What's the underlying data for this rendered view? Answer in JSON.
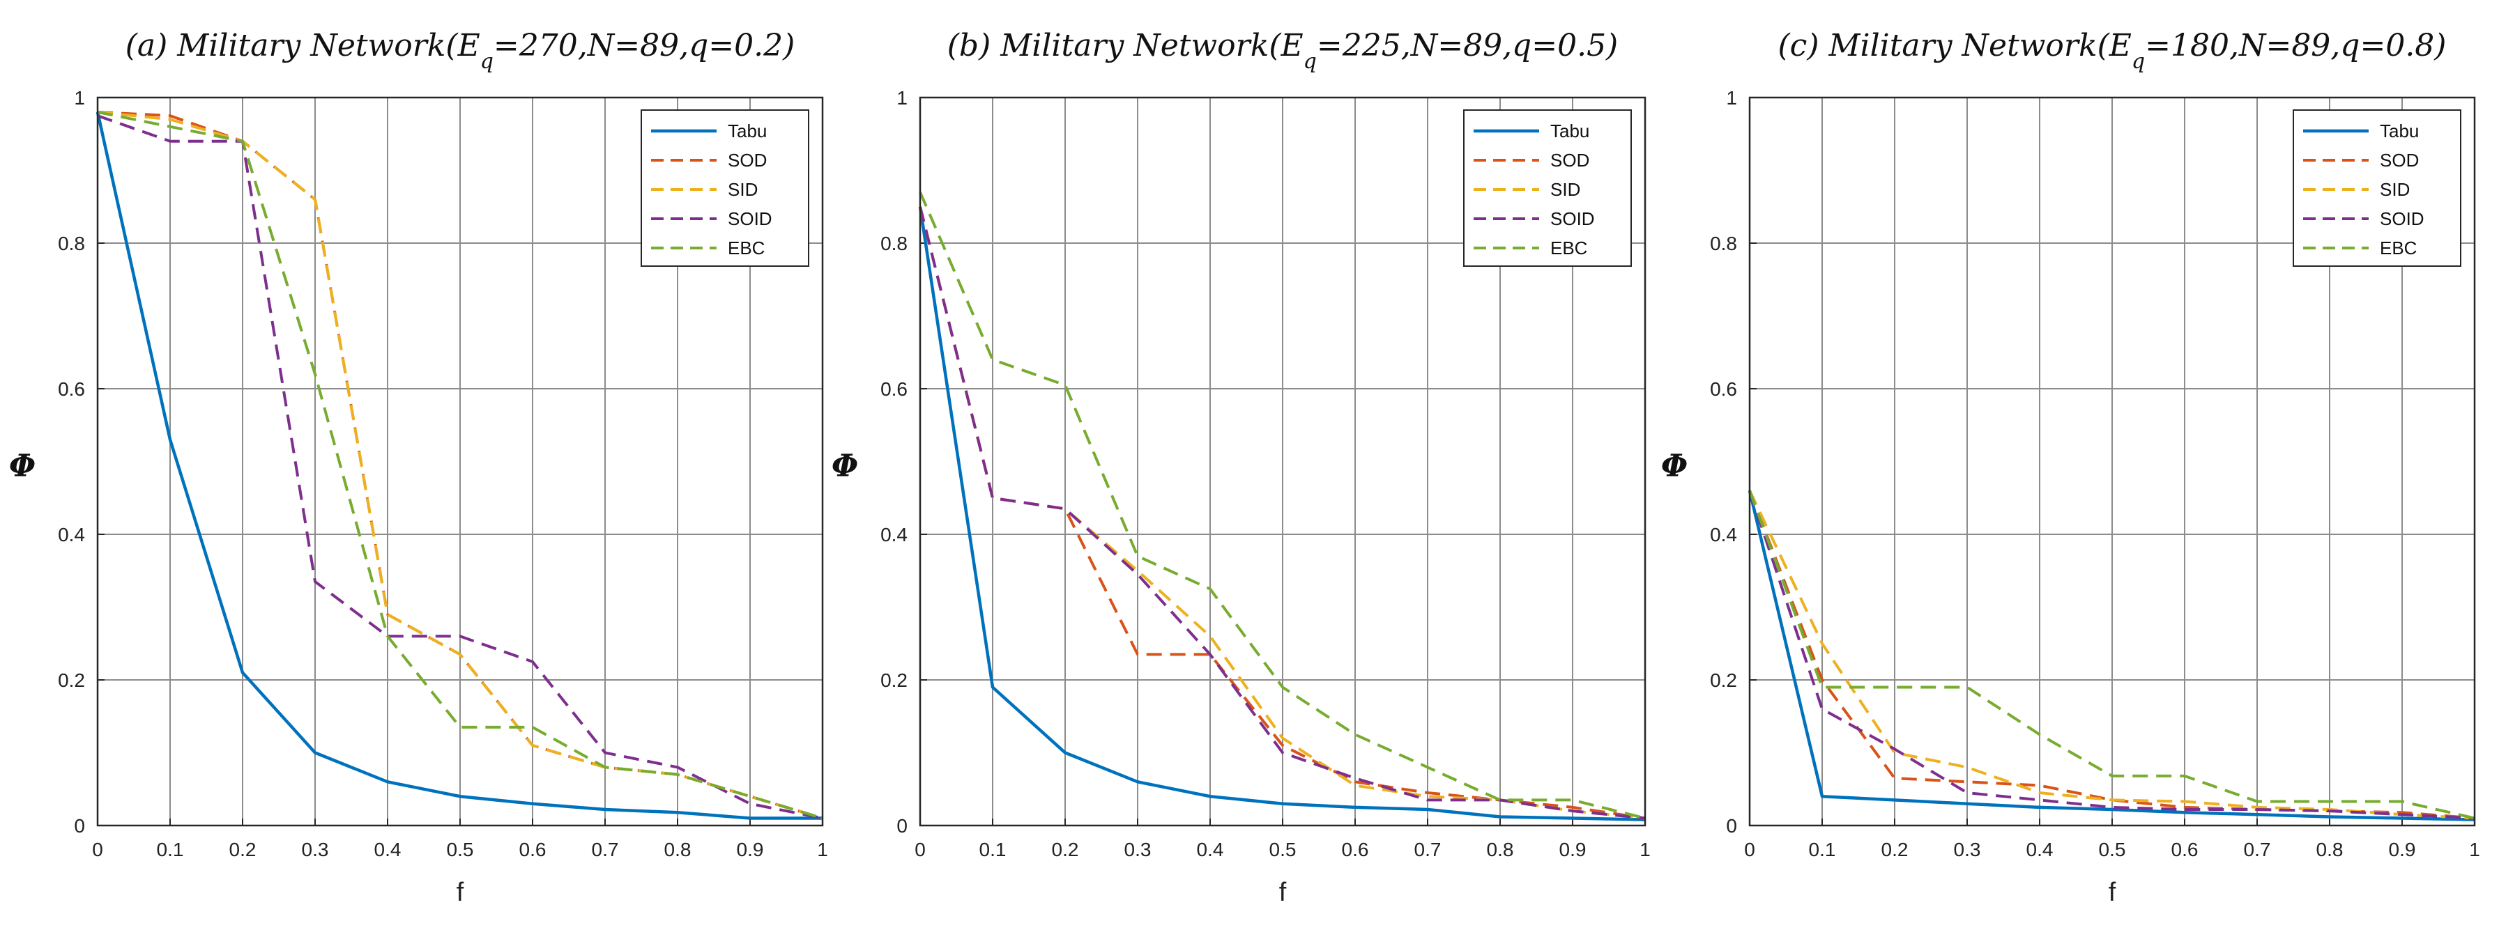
{
  "chart_data": [
    {
      "type": "line",
      "title": "(a) Military Network(E_q=270,N=89,q=0.2)",
      "xlabel": "f",
      "ylabel": "Φ",
      "xlim": [
        0,
        1
      ],
      "ylim": [
        0,
        1
      ],
      "xticks": [
        "0",
        "0.1",
        "0.2",
        "0.3",
        "0.4",
        "0.5",
        "0.6",
        "0.7",
        "0.8",
        "0.9",
        "1"
      ],
      "yticks": [
        "0",
        "0.2",
        "0.4",
        "0.6",
        "0.8",
        "1"
      ],
      "grid": true,
      "legend_position": "top-right",
      "x": [
        0,
        0.1,
        0.2,
        0.3,
        0.4,
        0.5,
        0.6,
        0.7,
        0.8,
        0.9,
        1.0
      ],
      "series": [
        {
          "name": "Tabu",
          "color": "#0072BD",
          "dash": "solid",
          "values": [
            0.98,
            0.53,
            0.21,
            0.1,
            0.06,
            0.04,
            0.03,
            0.022,
            0.018,
            0.01,
            0.01
          ]
        },
        {
          "name": "SOD",
          "color": "#D95319",
          "dash": "dashed",
          "values": [
            0.98,
            0.975,
            0.94,
            0.86,
            0.29,
            0.235,
            0.11,
            0.08,
            0.07,
            0.04,
            0.01
          ]
        },
        {
          "name": "SID",
          "color": "#EDB120",
          "dash": "dashed",
          "values": [
            0.98,
            0.97,
            0.94,
            0.86,
            0.29,
            0.235,
            0.11,
            0.08,
            0.07,
            0.04,
            0.01
          ]
        },
        {
          "name": "SOID",
          "color": "#7E2F8E",
          "dash": "dashed",
          "values": [
            0.975,
            0.94,
            0.94,
            0.335,
            0.26,
            0.26,
            0.225,
            0.1,
            0.08,
            0.03,
            0.01
          ]
        },
        {
          "name": "EBC",
          "color": "#77AC30",
          "dash": "dashed",
          "values": [
            0.98,
            0.96,
            0.94,
            0.62,
            0.26,
            0.135,
            0.135,
            0.08,
            0.07,
            0.04,
            0.01
          ]
        }
      ]
    },
    {
      "type": "line",
      "title": "(b) Military Network(E_q=225,N=89,q=0.5)",
      "xlabel": "f",
      "ylabel": "Φ",
      "xlim": [
        0,
        1
      ],
      "ylim": [
        0,
        1
      ],
      "xticks": [
        "0",
        "0.1",
        "0.2",
        "0.3",
        "0.4",
        "0.5",
        "0.6",
        "0.7",
        "0.8",
        "0.9",
        "1"
      ],
      "yticks": [
        "0",
        "0.2",
        "0.4",
        "0.6",
        "0.8",
        "1"
      ],
      "grid": true,
      "legend_position": "top-right",
      "x": [
        0,
        0.1,
        0.2,
        0.3,
        0.4,
        0.5,
        0.6,
        0.7,
        0.8,
        0.9,
        1.0
      ],
      "series": [
        {
          "name": "Tabu",
          "color": "#0072BD",
          "dash": "solid",
          "values": [
            0.85,
            0.19,
            0.1,
            0.06,
            0.04,
            0.03,
            0.025,
            0.022,
            0.012,
            0.01,
            0.008
          ]
        },
        {
          "name": "SOD",
          "color": "#D95319",
          "dash": "dashed",
          "values": [
            0.85,
            0.45,
            0.435,
            0.235,
            0.235,
            0.11,
            0.06,
            0.045,
            0.035,
            0.025,
            0.01
          ]
        },
        {
          "name": "SID",
          "color": "#EDB120",
          "dash": "dashed",
          "values": [
            0.85,
            0.45,
            0.435,
            0.35,
            0.26,
            0.12,
            0.055,
            0.04,
            0.035,
            0.02,
            0.01
          ]
        },
        {
          "name": "SOID",
          "color": "#7E2F8E",
          "dash": "dashed",
          "values": [
            0.85,
            0.45,
            0.435,
            0.345,
            0.235,
            0.1,
            0.065,
            0.035,
            0.035,
            0.02,
            0.01
          ]
        },
        {
          "name": "EBC",
          "color": "#77AC30",
          "dash": "dashed",
          "values": [
            0.87,
            0.64,
            0.605,
            0.37,
            0.325,
            0.19,
            0.125,
            0.08,
            0.035,
            0.035,
            0.01
          ]
        }
      ]
    },
    {
      "type": "line",
      "title": "(c) Military Network(E_q=180,N=89,q=0.8)",
      "xlabel": "f",
      "ylabel": "Φ",
      "xlim": [
        0,
        1
      ],
      "ylim": [
        0,
        1
      ],
      "xticks": [
        "0",
        "0.1",
        "0.2",
        "0.3",
        "0.4",
        "0.5",
        "0.6",
        "0.7",
        "0.8",
        "0.9",
        "1"
      ],
      "yticks": [
        "0",
        "0.2",
        "0.4",
        "0.6",
        "0.8",
        "1"
      ],
      "grid": true,
      "legend_position": "top-right",
      "x": [
        0,
        0.1,
        0.2,
        0.3,
        0.4,
        0.5,
        0.6,
        0.7,
        0.8,
        0.9,
        1.0
      ],
      "series": [
        {
          "name": "Tabu",
          "color": "#0072BD",
          "dash": "solid",
          "values": [
            0.46,
            0.04,
            0.035,
            0.03,
            0.025,
            0.022,
            0.018,
            0.015,
            0.012,
            0.01,
            0.008
          ]
        },
        {
          "name": "SOD",
          "color": "#D95319",
          "dash": "dashed",
          "values": [
            0.46,
            0.2,
            0.065,
            0.06,
            0.055,
            0.035,
            0.025,
            0.022,
            0.02,
            0.018,
            0.01
          ]
        },
        {
          "name": "SID",
          "color": "#EDB120",
          "dash": "dashed",
          "values": [
            0.46,
            0.25,
            0.1,
            0.08,
            0.045,
            0.035,
            0.033,
            0.025,
            0.022,
            0.015,
            0.01
          ]
        },
        {
          "name": "SOID",
          "color": "#7E2F8E",
          "dash": "dashed",
          "values": [
            0.46,
            0.16,
            0.105,
            0.045,
            0.035,
            0.025,
            0.022,
            0.022,
            0.02,
            0.015,
            0.01
          ]
        },
        {
          "name": "EBC",
          "color": "#77AC30",
          "dash": "dashed",
          "values": [
            0.46,
            0.19,
            0.19,
            0.19,
            0.125,
            0.068,
            0.068,
            0.033,
            0.033,
            0.033,
            0.01
          ]
        }
      ]
    }
  ]
}
